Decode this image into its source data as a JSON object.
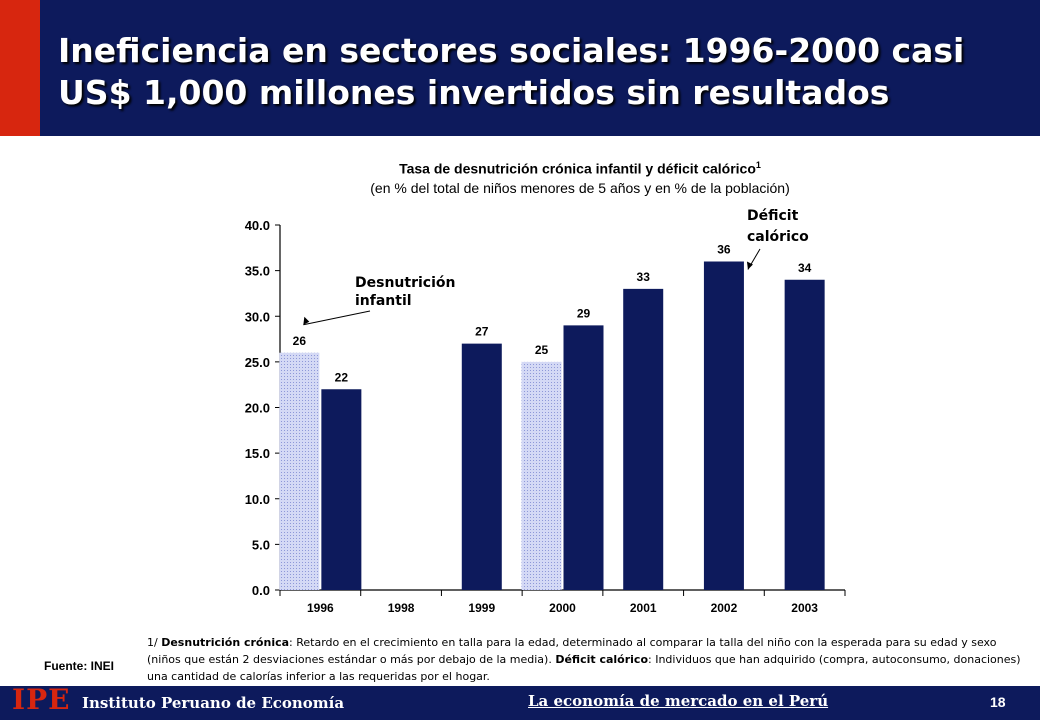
{
  "header": {
    "title_line1": "Ineficiencia en sectores sociales: 1996-2000 casi",
    "title_line2": "US$ 1,000 millones invertidos sin resultados"
  },
  "chart_heading": {
    "title": "Tasa de desnutrición crónica infantil y déficit calórico",
    "title_sup": "1",
    "subtitle": "(en % del total de niños menores de 5 años y en % de la población)"
  },
  "chart_data": {
    "type": "bar",
    "categories": [
      "1996",
      "1998",
      "1999",
      "2000",
      "2001",
      "2002",
      "2003"
    ],
    "series": [
      {
        "name": "Desnutrición infantil",
        "color": "#c7cdf2",
        "points": [
          {
            "category": "1996",
            "value": 26
          },
          {
            "category": "2000",
            "value": 25
          }
        ]
      },
      {
        "name": "Déficit calórico",
        "color": "#0d1a5c",
        "points": [
          {
            "category": "1996",
            "value": 22
          },
          {
            "category": "1999",
            "value": 27
          },
          {
            "category": "2000",
            "value": 29
          },
          {
            "category": "2001",
            "value": 33
          },
          {
            "category": "2002",
            "value": 36
          },
          {
            "category": "2003",
            "value": 34
          }
        ]
      }
    ],
    "ylim": [
      0,
      40
    ],
    "yticks": [
      "0.0",
      "5.0",
      "10.0",
      "15.0",
      "20.0",
      "25.0",
      "30.0",
      "35.0",
      "40.0"
    ],
    "annotations": [
      {
        "series": "Desnutrición infantil",
        "line1": "Desnutrición",
        "line2": "infantil"
      },
      {
        "series": "Déficit calórico",
        "line1": "Déficit",
        "line2": "calórico"
      }
    ],
    "grid": false,
    "legend": "none"
  },
  "footnote": {
    "marker": "1/",
    "term1": "Desnutrición crónica",
    "text1": ": Retardo en el crecimiento en talla para la edad, determinado al comparar la talla del niño con la esperada para su edad y sexo (niños que están 2 desviaciones estándar o más por debajo de la media). ",
    "term2": "Déficit calórico",
    "text2": ": Individuos que han adquirido (compra, autoconsumo, donaciones) una cantidad de calorías inferior a las requeridas por el hogar."
  },
  "source": "Fuente: INEI",
  "footer": {
    "logo": "IPE",
    "org": "Instituto Peruano de Economía",
    "slogan": "La economía de mercado en el Perú",
    "page": "18"
  }
}
